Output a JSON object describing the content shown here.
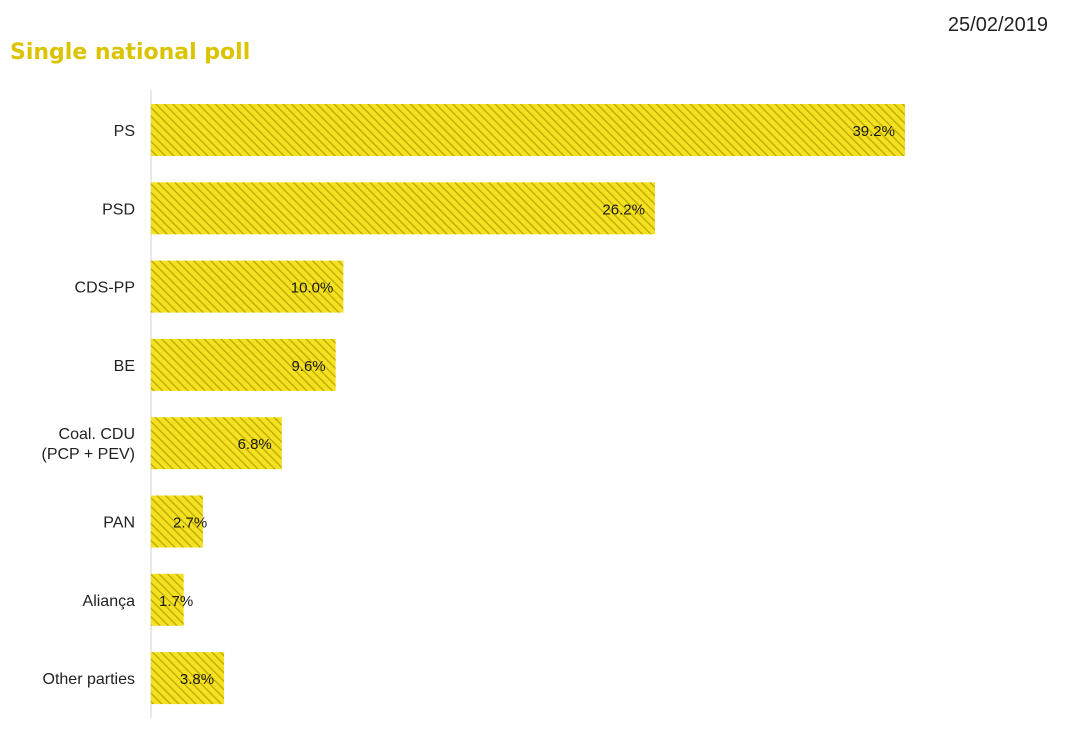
{
  "header": {
    "title": "Single national poll",
    "date": "25/02/2019"
  },
  "colors": {
    "bar_fill": "#f5e120",
    "bar_stripe": "#b8a800",
    "title": "#dcc300",
    "axis": "#d0d0d0"
  },
  "chart_data": {
    "type": "bar",
    "orientation": "horizontal",
    "title": "Single national poll",
    "categories": [
      "PS",
      "PSD",
      "CDS-PP",
      "BE",
      "Coal. CDU\n(PCP + PEV)",
      "PAN",
      "Aliança",
      "Other parties"
    ],
    "values": [
      39.2,
      26.2,
      10.0,
      9.6,
      6.8,
      2.7,
      1.7,
      3.8
    ],
    "value_labels": [
      "39.2%",
      "26.2%",
      "10.0%",
      "9.6%",
      "6.8%",
      "2.7%",
      "1.7%",
      "3.8%"
    ],
    "unit": "%",
    "xlim": [
      0,
      42
    ],
    "grid": false,
    "legend": "none"
  }
}
